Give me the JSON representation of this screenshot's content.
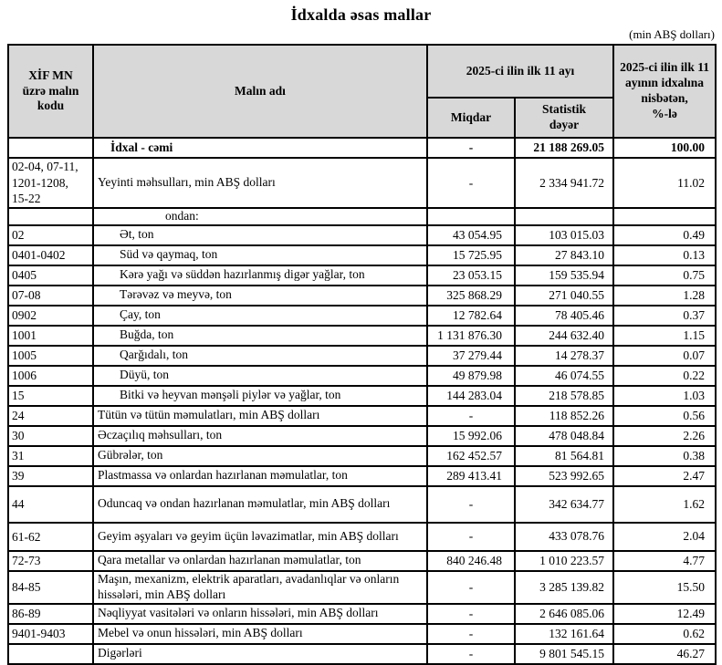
{
  "title": "İdxalda əsas mallar",
  "unit_note": "(min ABŞ dolları)",
  "table": {
    "headers": {
      "code": "XİF MN\nüzrə malın\nkodu",
      "name": "Malın adı",
      "period": "2025-ci ilin ilk 11 ayı",
      "quantity": "Miqdar",
      "value": "Statistik\ndəyər",
      "share": "2025-ci ilin ilk 11\nayının idxalına\nnisbətən,\n%-lə"
    },
    "rows": [
      {
        "style": "total",
        "code": "",
        "name": "İdxal - cəmi",
        "qty": "-",
        "value": "21 188 269.05",
        "share": "100.00"
      },
      {
        "style": "",
        "code": "02-04, 07-11,\n1201-1208,\n15-22",
        "name": "Yeyinti məhsulları, min ABŞ dolları",
        "qty": "-",
        "value": "2 334 941.72",
        "share": "11.02"
      },
      {
        "style": "section",
        "code": "",
        "name": "ondan:",
        "qty": "",
        "value": "",
        "share": ""
      },
      {
        "style": "indent",
        "code": "02",
        "name": "Ət, ton",
        "qty": "43 054.95",
        "value": "103 015.03",
        "share": "0.49"
      },
      {
        "style": "indent",
        "code": "0401-0402",
        "name": "Süd və qaymaq, ton",
        "qty": "15 725.95",
        "value": "27 843.10",
        "share": "0.13"
      },
      {
        "style": "indent",
        "code": "0405",
        "name": "Kərə yağı və süddən hazırlanmış digər yağlar, ton",
        "qty": "23 053.15",
        "value": "159 535.94",
        "share": "0.75"
      },
      {
        "style": "indent",
        "code": "07-08",
        "name": "Tərəvəz və meyvə, ton",
        "qty": "325 868.29",
        "value": "271 040.55",
        "share": "1.28"
      },
      {
        "style": "indent",
        "code": "0902",
        "name": "Çay, ton",
        "qty": "12 782.64",
        "value": "78 405.46",
        "share": "0.37"
      },
      {
        "style": "indent",
        "code": "1001",
        "name": "Buğda, ton",
        "qty": "1 131 876.30",
        "value": "244 632.40",
        "share": "1.15"
      },
      {
        "style": "indent",
        "code": "1005",
        "name": "Qarğıdalı, ton",
        "qty": "37 279.44",
        "value": "14 278.37",
        "share": "0.07"
      },
      {
        "style": "indent",
        "code": "1006",
        "name": "Düyü, ton",
        "qty": "49 879.98",
        "value": "46 074.55",
        "share": "0.22"
      },
      {
        "style": "indent",
        "code": "15",
        "name": "Bitki və heyvan mənşəli piylər və yağlar, ton",
        "qty": "144 283.04",
        "value": "218 578.85",
        "share": "1.03"
      },
      {
        "style": "",
        "code": "24",
        "name": "Tütün və tütün məmulatları, min ABŞ dolları",
        "qty": "-",
        "value": "118 852.26",
        "share": "0.56"
      },
      {
        "style": "",
        "code": "30",
        "name": "Əczaçılıq məhsulları, ton",
        "qty": "15 992.06",
        "value": "478 048.84",
        "share": "2.26"
      },
      {
        "style": "",
        "code": "31",
        "name": "Gübrələr, ton",
        "qty": "162 452.57",
        "value": "81 564.81",
        "share": "0.38"
      },
      {
        "style": "",
        "code": "39",
        "name": "Plastmassa və onlardan hazırlanan məmulatlar, ton",
        "qty": "289 413.41",
        "value": "523 992.65",
        "share": "2.47"
      },
      {
        "style": "",
        "code": "44",
        "name": "Oduncaq və ondan hazırlanan məmulatlar, min ABŞ dolları",
        "qty": "-",
        "value": "342 634.77",
        "share": "1.62"
      },
      {
        "style": "",
        "code": "61-62",
        "name": "Geyim əşyaları və geyim üçün ləvazimatlar, min ABŞ dolları",
        "qty": "-",
        "value": "433 078.76",
        "share": "2.04"
      },
      {
        "style": "",
        "code": "72-73",
        "name": "Qara metallar və onlardan hazırlanan məmulatlar, ton",
        "qty": "840 246.48",
        "value": "1 010 223.57",
        "share": "4.77"
      },
      {
        "style": "",
        "code": "84-85",
        "name": "Maşın, mexanizm, elektrik aparatları, avadanlıqlar və onların hissələri, min ABŞ dolları",
        "qty": "-",
        "value": "3 285 139.82",
        "share": "15.50"
      },
      {
        "style": "",
        "code": "86-89",
        "name": "Nəqliyyat vasitələri və onların hissələri, min ABŞ dolları",
        "qty": "-",
        "value": "2 646 085.06",
        "share": "12.49"
      },
      {
        "style": "",
        "code": "9401-9403",
        "name": "Mebel və onun hissələri, min ABŞ dolları",
        "qty": "-",
        "value": "132 161.64",
        "share": "0.62"
      },
      {
        "style": "",
        "code": "",
        "name": "Digərləri",
        "qty": "-",
        "value": "9 801 545.15",
        "share": "46.27"
      }
    ]
  }
}
